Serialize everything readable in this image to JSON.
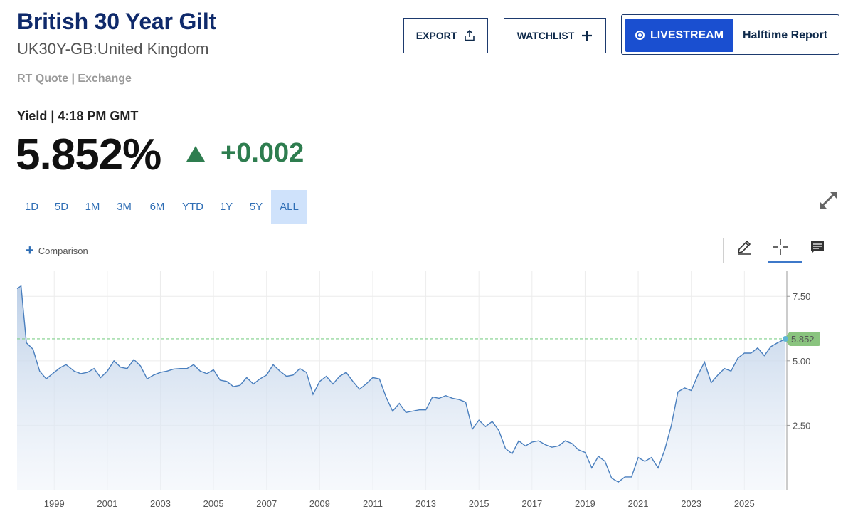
{
  "header": {
    "title": "British 30 Year Gilt",
    "subtitle": "UK30Y-GB:United Kingdom",
    "quote_source": "RT Quote | Exchange"
  },
  "buttons": {
    "export": "EXPORT",
    "watchlist": "WATCHLIST",
    "livestream": "LIVESTREAM",
    "halftime": "Halftime Report"
  },
  "quote": {
    "yield_time": "Yield | 4:18 PM GMT",
    "price": "5.852%",
    "change": "+0.002",
    "change_color": "#2e7d4f"
  },
  "ranges": [
    "1D",
    "5D",
    "1M",
    "3M",
    "6M",
    "YTD",
    "1Y",
    "5Y",
    "ALL"
  ],
  "active_range": "ALL",
  "toolbar": {
    "comparison": "Comparison",
    "icons": [
      "pencil-icon",
      "crosshair-icon",
      "comment-icon"
    ],
    "active_tool": "crosshair-icon"
  },
  "chart_data": {
    "type": "area",
    "current_value_label": "5.852",
    "current_value": 5.852,
    "ylim": [
      0,
      8.5
    ],
    "y_ticks": [
      2.5,
      5.0,
      7.5
    ],
    "y_tick_labels": [
      "2.50",
      "5.00",
      "7.50"
    ],
    "xlim": [
      1997.6,
      2026.6
    ],
    "x_ticks": [
      1999,
      2001,
      2003,
      2005,
      2007,
      2009,
      2011,
      2013,
      2015,
      2017,
      2019,
      2021,
      2023,
      2025
    ],
    "x_tick_labels": [
      "1999",
      "2001",
      "2003",
      "2005",
      "2007",
      "2009",
      "2011",
      "2013",
      "2015",
      "2017",
      "2019",
      "2021",
      "2023",
      "2025"
    ],
    "grid": true,
    "line_color": "#4a7fbe",
    "fill_color": "#c8d8ec",
    "reference_line_color": "#7fcf8a",
    "label_bg_color": "#8ac47f",
    "x": [
      1997.6,
      1997.75,
      1997.95,
      1998.2,
      1998.45,
      1998.7,
      1999.0,
      1999.25,
      1999.45,
      1999.75,
      2000.0,
      2000.25,
      2000.5,
      2000.75,
      2001.0,
      2001.25,
      2001.5,
      2001.75,
      2002.0,
      2002.25,
      2002.5,
      2002.75,
      2003.0,
      2003.25,
      2003.5,
      2003.75,
      2004.0,
      2004.25,
      2004.5,
      2004.75,
      2005.0,
      2005.25,
      2005.5,
      2005.75,
      2006.0,
      2006.25,
      2006.5,
      2006.75,
      2007.0,
      2007.25,
      2007.5,
      2007.75,
      2008.0,
      2008.25,
      2008.5,
      2008.75,
      2009.0,
      2009.25,
      2009.5,
      2009.75,
      2010.0,
      2010.25,
      2010.5,
      2010.75,
      2011.0,
      2011.25,
      2011.5,
      2011.75,
      2012.0,
      2012.25,
      2012.5,
      2012.75,
      2013.0,
      2013.25,
      2013.5,
      2013.75,
      2014.0,
      2014.25,
      2014.5,
      2014.75,
      2015.0,
      2015.25,
      2015.5,
      2015.75,
      2016.0,
      2016.25,
      2016.5,
      2016.75,
      2017.0,
      2017.25,
      2017.5,
      2017.75,
      2018.0,
      2018.25,
      2018.5,
      2018.75,
      2019.0,
      2019.25,
      2019.5,
      2019.75,
      2020.0,
      2020.25,
      2020.5,
      2020.75,
      2021.0,
      2021.25,
      2021.5,
      2021.75,
      2022.0,
      2022.25,
      2022.5,
      2022.75,
      2023.0,
      2023.25,
      2023.5,
      2023.75,
      2024.0,
      2024.25,
      2024.5,
      2024.75,
      2025.0,
      2025.25,
      2025.5,
      2025.75,
      2026.0,
      2026.25,
      2026.55
    ],
    "y": [
      7.8,
      7.9,
      5.7,
      5.45,
      4.6,
      4.3,
      4.55,
      4.75,
      4.85,
      4.6,
      4.5,
      4.55,
      4.7,
      4.35,
      4.6,
      5.0,
      4.75,
      4.7,
      5.05,
      4.8,
      4.3,
      4.45,
      4.55,
      4.6,
      4.68,
      4.7,
      4.7,
      4.85,
      4.6,
      4.5,
      4.65,
      4.25,
      4.2,
      4.0,
      4.05,
      4.35,
      4.1,
      4.3,
      4.45,
      4.85,
      4.6,
      4.4,
      4.45,
      4.7,
      4.55,
      3.7,
      4.2,
      4.4,
      4.1,
      4.4,
      4.55,
      4.2,
      3.9,
      4.1,
      4.35,
      4.3,
      3.6,
      3.05,
      3.35,
      3.0,
      3.05,
      3.1,
      3.1,
      3.6,
      3.55,
      3.65,
      3.55,
      3.5,
      3.4,
      2.35,
      2.7,
      2.45,
      2.65,
      2.3,
      1.6,
      1.4,
      1.9,
      1.7,
      1.85,
      1.9,
      1.75,
      1.65,
      1.7,
      1.9,
      1.8,
      1.55,
      1.45,
      0.85,
      1.3,
      1.1,
      0.45,
      0.3,
      0.5,
      0.5,
      1.25,
      1.1,
      1.25,
      0.85,
      1.55,
      2.5,
      3.8,
      3.95,
      3.85,
      4.45,
      4.95,
      4.15,
      4.45,
      4.7,
      4.6,
      5.1,
      5.3,
      5.3,
      5.5,
      5.2,
      5.55,
      5.7,
      5.852
    ]
  }
}
